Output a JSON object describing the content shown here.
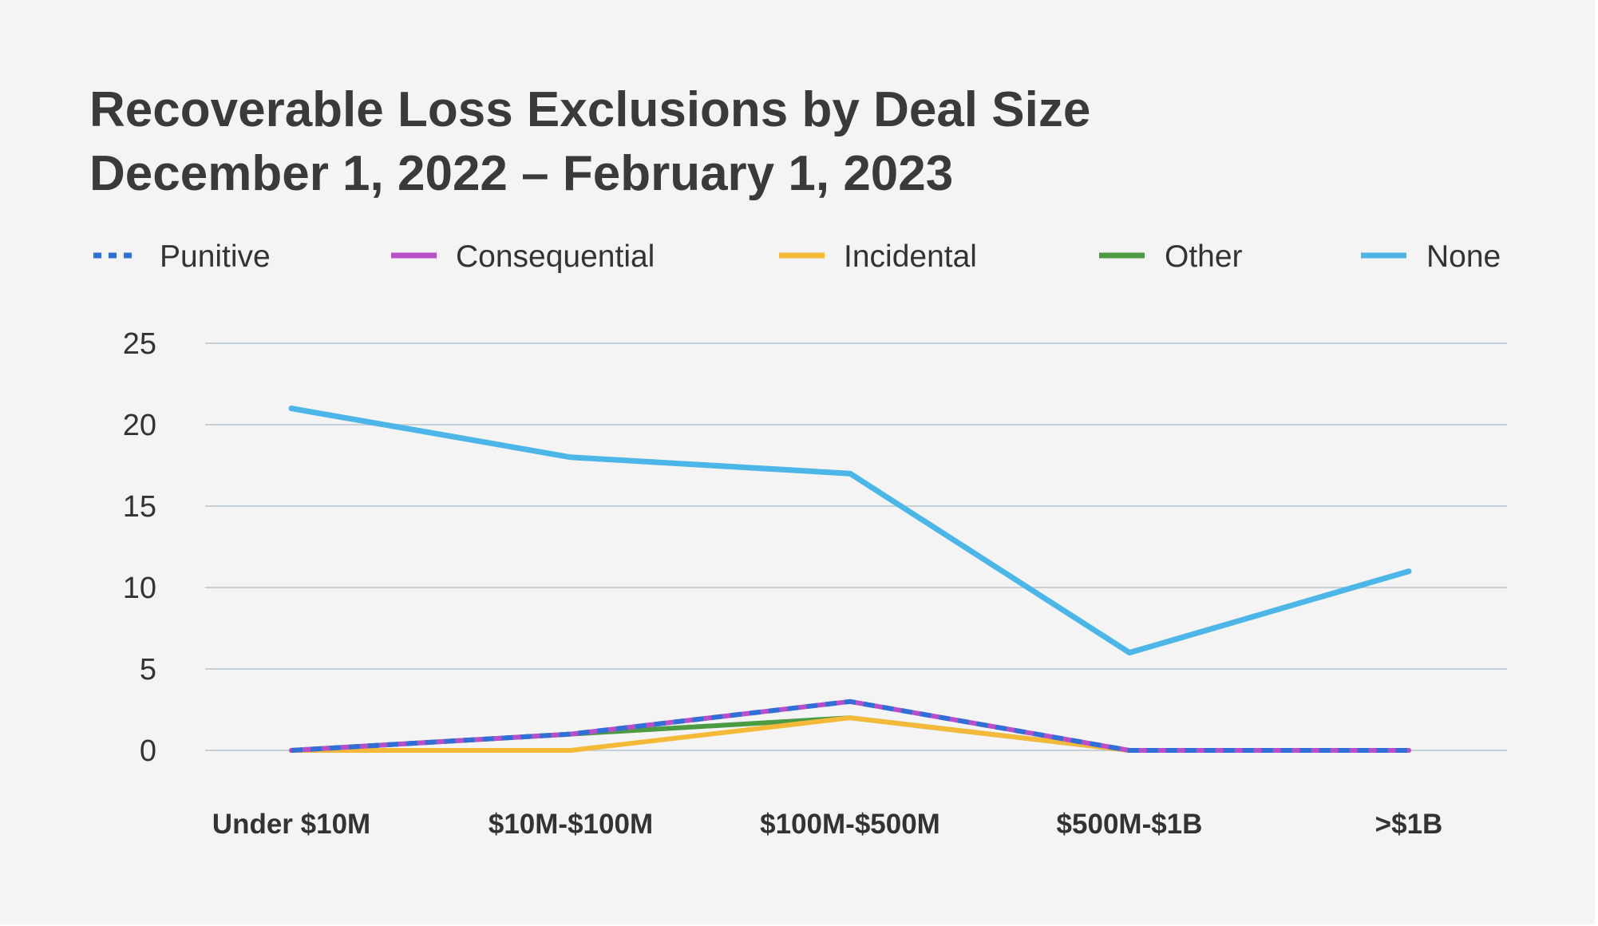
{
  "chart_data": {
    "type": "line",
    "title": [
      "Recoverable Loss Exclusions by Deal Size",
      "December 1, 2022 – February 1, 2023"
    ],
    "categories": [
      "Under $10M",
      "$10M-$100M",
      "$100M-$500M",
      "$500M-$1B",
      ">$1B"
    ],
    "ylim": [
      0,
      25
    ],
    "yticks": [
      "0",
      "5",
      "10",
      "15",
      "20",
      "25"
    ],
    "grid": true,
    "legend_position": "top",
    "series": [
      {
        "name": "Punitive",
        "color": "#2f6fd6",
        "style": "dotted",
        "values": [
          0,
          1,
          3,
          0,
          0
        ]
      },
      {
        "name": "Consequential",
        "color": "#b84fc9",
        "style": "solid",
        "values": [
          0,
          1,
          3,
          0,
          0
        ]
      },
      {
        "name": "Incidental",
        "color": "#f5b93a",
        "style": "solid",
        "values": [
          0,
          0,
          2,
          0,
          0
        ]
      },
      {
        "name": "Other",
        "color": "#4c9b44",
        "style": "solid",
        "values": [
          0,
          1,
          2,
          0,
          0
        ]
      },
      {
        "name": "None",
        "color": "#4cb6e8",
        "style": "solid",
        "values": [
          21,
          18,
          17,
          6,
          11
        ]
      }
    ]
  }
}
